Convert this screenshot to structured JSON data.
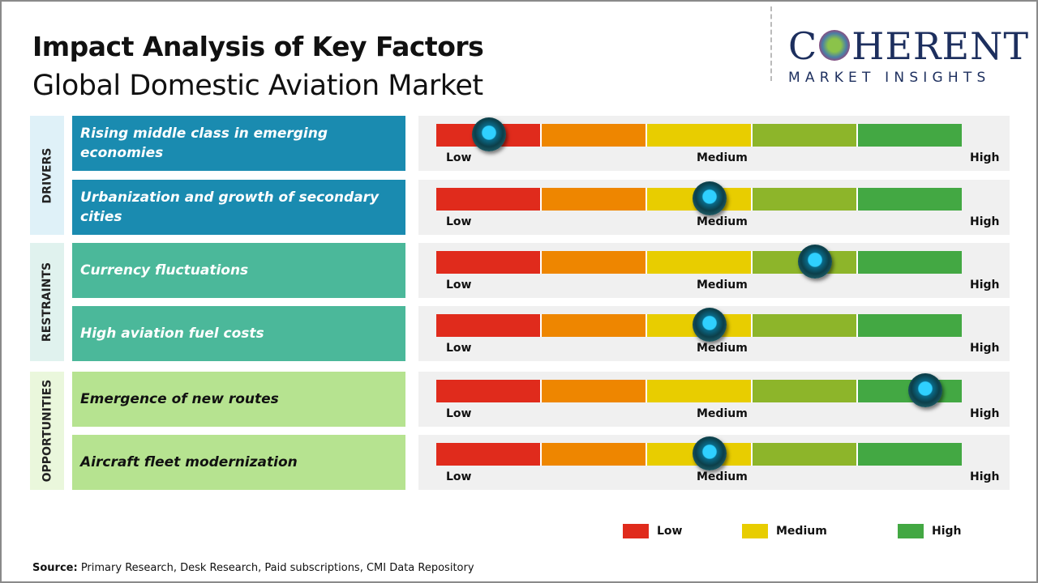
{
  "title": "Impact Analysis of Key Factors",
  "subtitle": "Global Domestic Aviation Market",
  "logo": {
    "main": "COHERENT",
    "sub": "MARKET INSIGHTS"
  },
  "scale_labels": {
    "low": "Low",
    "medium": "Medium",
    "high": "High"
  },
  "segment_colors": [
    "#e02b1c",
    "#ee8600",
    "#e8cd00",
    "#8db52a",
    "#43a843"
  ],
  "chart_data": {
    "type": "table",
    "scale": "Low to High impact (0-100 along gauge)",
    "categories": [
      {
        "name": "DRIVERS",
        "color": "#1a8bb0",
        "label_bg": "#dff1f8",
        "text_color": "#ffffff",
        "factors": [
          {
            "label": "Rising middle class in emerging economies",
            "impact": 10
          },
          {
            "label": "Urbanization and growth of secondary cities",
            "impact": 52
          }
        ]
      },
      {
        "name": "RESTRAINTS",
        "color": "#4bb89a",
        "label_bg": "#e0f2ee",
        "text_color": "#ffffff",
        "factors": [
          {
            "label": "Currency fluctuations",
            "impact": 72
          },
          {
            "label": "High aviation fuel costs",
            "impact": 52
          }
        ]
      },
      {
        "name": "OPPORTUNITIES",
        "color": "#b6e390",
        "label_bg": "#eaf7dc",
        "text_color": "#111111",
        "factors": [
          {
            "label": "Emergence  of new routes",
            "impact": 93
          },
          {
            "label": "Aircraft fleet modernization",
            "impact": 52
          }
        ]
      }
    ],
    "legend": [
      {
        "label": "Low",
        "color": "#e02b1c"
      },
      {
        "label": "Medium",
        "color": "#e8cd00"
      },
      {
        "label": "High",
        "color": "#43a843"
      }
    ]
  },
  "source": {
    "prefix": "Source:",
    "text": " Primary Research, Desk Research, Paid subscriptions, CMI Data Repository"
  }
}
